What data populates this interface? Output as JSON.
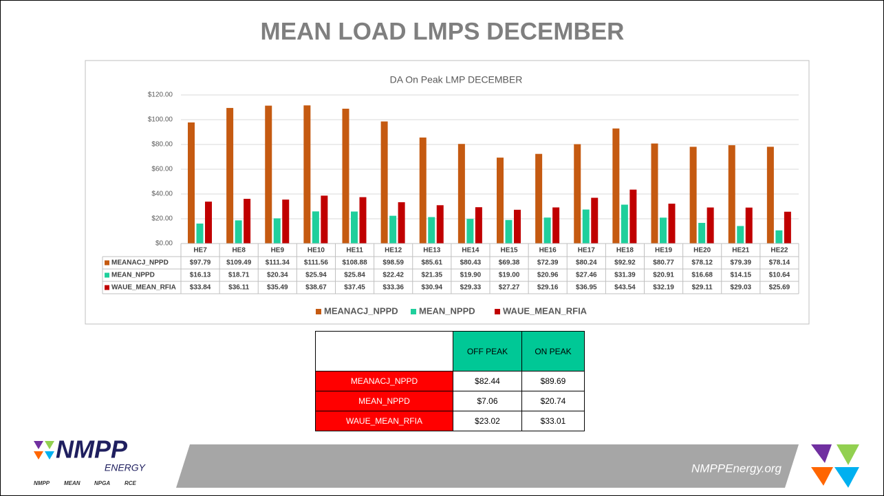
{
  "slide_title": "MEAN LOAD LMPS DECEMBER",
  "chart_data": {
    "type": "bar",
    "title": "DA On Peak LMP DECEMBER",
    "categories": [
      "HE7",
      "HE8",
      "HE9",
      "HE10",
      "HE11",
      "HE12",
      "HE13",
      "HE14",
      "HE15",
      "HE16",
      "HE17",
      "HE18",
      "HE19",
      "HE20",
      "HE21",
      "HE22"
    ],
    "series": [
      {
        "name": "MEANACJ_NPPD",
        "color": "#c55a11",
        "values": [
          97.79,
          109.49,
          111.34,
          111.56,
          108.88,
          98.59,
          85.61,
          80.43,
          69.38,
          72.39,
          80.24,
          92.92,
          80.77,
          78.12,
          79.39,
          78.14
        ],
        "value_labels": [
          "$97.79",
          "$109.49",
          "$111.34",
          "$111.56",
          "$108.88",
          "$98.59",
          "$85.61",
          "$80.43",
          "$69.38",
          "$72.39",
          "$80.24",
          "$92.92",
          "$80.77",
          "$78.12",
          "$79.39",
          "$78.14"
        ]
      },
      {
        "name": "MEAN_NPPD",
        "color": "#1fcf9c",
        "values": [
          16.13,
          18.71,
          20.34,
          25.94,
          25.84,
          22.42,
          21.35,
          19.9,
          19.0,
          20.96,
          27.46,
          31.39,
          20.91,
          16.68,
          14.15,
          10.64
        ],
        "value_labels": [
          "$16.13",
          "$18.71",
          "$20.34",
          "$25.94",
          "$25.84",
          "$22.42",
          "$21.35",
          "$19.90",
          "$19.00",
          "$20.96",
          "$27.46",
          "$31.39",
          "$20.91",
          "$16.68",
          "$14.15",
          "$10.64"
        ]
      },
      {
        "name": "WAUE_MEAN_RFIA",
        "color": "#c00000",
        "values": [
          33.84,
          36.11,
          35.49,
          38.67,
          37.45,
          33.36,
          30.94,
          29.33,
          27.27,
          29.16,
          36.95,
          43.54,
          32.19,
          29.11,
          29.03,
          25.69
        ],
        "value_labels": [
          "$33.84",
          "$36.11",
          "$35.49",
          "$38.67",
          "$37.45",
          "$33.36",
          "$30.94",
          "$29.33",
          "$27.27",
          "$29.16",
          "$36.95",
          "$43.54",
          "$32.19",
          "$29.11",
          "$29.03",
          "$25.69"
        ]
      }
    ],
    "ylim": [
      0,
      120
    ],
    "yticks": [
      {
        "value": 0,
        "label": "$0.00"
      },
      {
        "value": 20,
        "label": "$20.00"
      },
      {
        "value": 40,
        "label": "$40.00"
      },
      {
        "value": 60,
        "label": "$60.00"
      },
      {
        "value": 80,
        "label": "$80.00"
      },
      {
        "value": 100,
        "label": "$100.00"
      },
      {
        "value": 120,
        "label": "$120.00"
      }
    ],
    "grid": true,
    "legend": "bottom"
  },
  "summary_table": {
    "headers": [
      "OFF PEAK",
      "ON PEAK"
    ],
    "rows": [
      [
        "MEANACJ_NPPD",
        "$82.44",
        "$89.69"
      ],
      [
        "MEAN_NPPD",
        "$7.06",
        "$20.74"
      ],
      [
        "WAUE_MEAN_RFIA",
        "$23.02",
        "$33.01"
      ]
    ]
  },
  "footer": {
    "logo": "NMPP",
    "logo_sub": "ENERGY",
    "members": [
      "NMPP",
      "MEAN",
      "NPGA",
      "RCE"
    ],
    "website": "NMPPEnergy.org"
  }
}
